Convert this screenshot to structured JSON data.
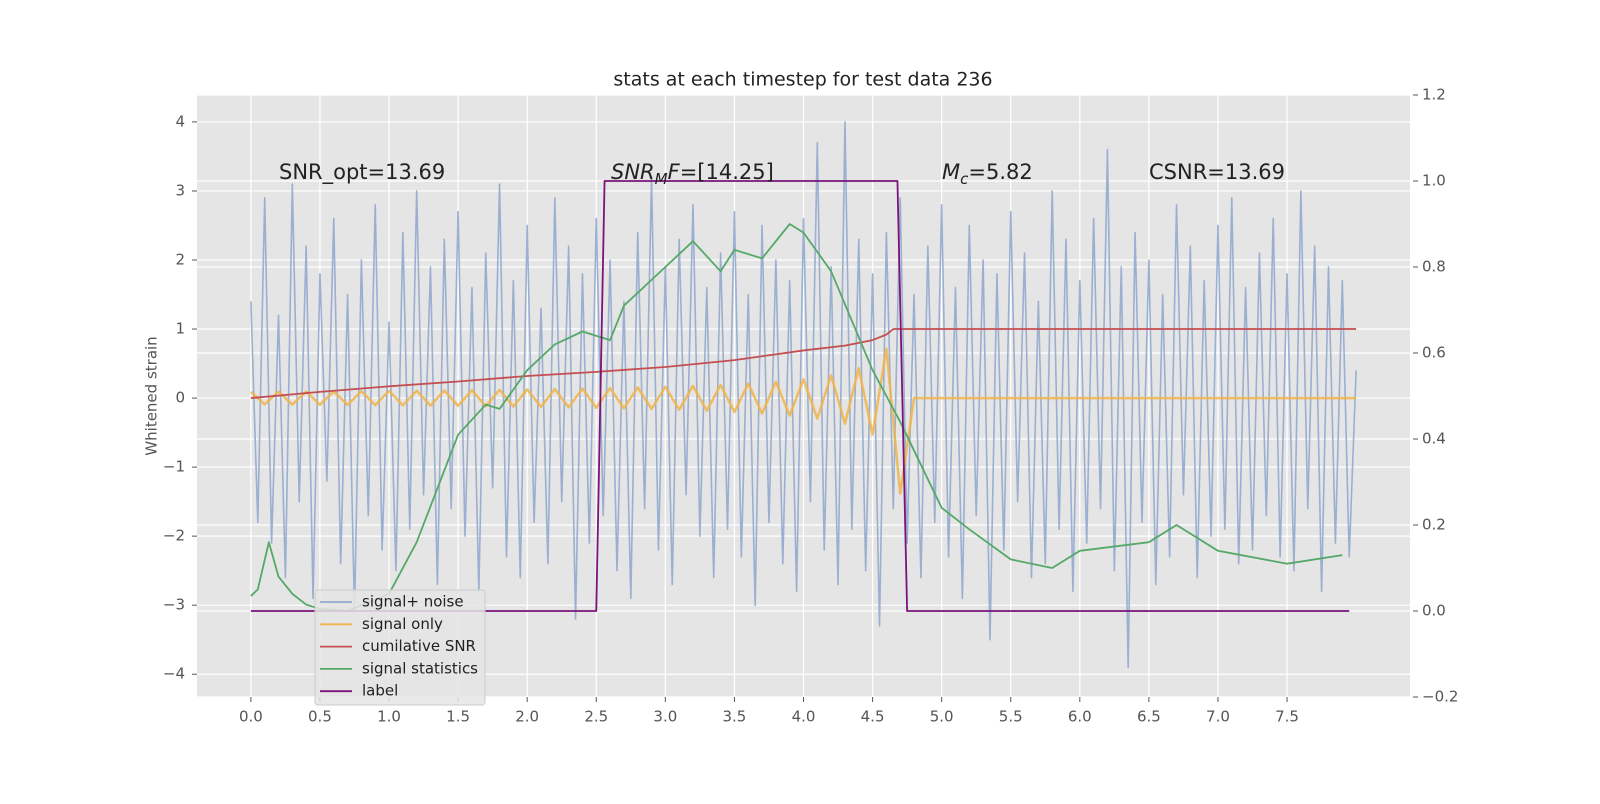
{
  "chart_data": {
    "type": "line",
    "title": "stats at each timestep for test data 236",
    "ylabel": "Whitened strain",
    "xlim": [
      -0.39,
      8.39
    ],
    "ylim": [
      -4.33,
      4.39
    ],
    "y2lim": [
      -0.2,
      1.2
    ],
    "xticks": [
      {
        "value": 0,
        "label": "0.0"
      },
      0.5,
      {
        "value": 1,
        "label": "1.0"
      },
      1.5,
      {
        "value": 2,
        "label": "2.0"
      },
      2.5,
      {
        "value": 3,
        "label": "3.0"
      },
      3.5,
      {
        "value": 4,
        "label": "4.0"
      },
      4.5,
      {
        "value": 5,
        "label": "5.0"
      },
      5.5,
      {
        "value": 6,
        "label": "6.0"
      },
      6.5,
      {
        "value": 7,
        "label": "7.0"
      },
      7.5
    ],
    "yticks": [
      {
        "value": -4,
        "label": "−4"
      },
      {
        "value": -3,
        "label": "−3"
      },
      {
        "value": -2,
        "label": "−2"
      },
      {
        "value": -1,
        "label": "−1"
      },
      0,
      1,
      2,
      3,
      4
    ],
    "y2ticks": [
      {
        "value": -0.2,
        "label": "−0.2"
      },
      {
        "value": 0,
        "label": "0.0"
      },
      0.2,
      0.4,
      0.6,
      0.8,
      {
        "value": 1,
        "label": "1.0"
      },
      1.2
    ],
    "grid": true,
    "annotations": [
      {
        "text": "SNR_opt=13.69"
      },
      {
        "math": "SNR",
        "sub": "M",
        "math_after": "F",
        "text": "=[14.25]"
      },
      {
        "math": "M",
        "sub": "c",
        "text": "=5.82"
      },
      {
        "text": "CSNR=13.69"
      }
    ],
    "series": [
      {
        "name": "signal+ noise",
        "color": "#92a8cd",
        "x": [
          0,
          0.05,
          0.1,
          0.15,
          0.2,
          0.25,
          0.3,
          0.35,
          0.4,
          0.45,
          0.5,
          0.55,
          0.6,
          0.65,
          0.7,
          0.75,
          0.8,
          0.85,
          0.9,
          0.95,
          1,
          1.05,
          1.1,
          1.15,
          1.2,
          1.25,
          1.3,
          1.35,
          1.4,
          1.45,
          1.5,
          1.55,
          1.6,
          1.65,
          1.7,
          1.75,
          1.8,
          1.85,
          1.9,
          1.95,
          2,
          2.05,
          2.1,
          2.15,
          2.2,
          2.25,
          2.3,
          2.35,
          2.4,
          2.45,
          2.5,
          2.55,
          2.6,
          2.65,
          2.7,
          2.75,
          2.8,
          2.85,
          2.9,
          2.95,
          3,
          3.05,
          3.1,
          3.15,
          3.2,
          3.25,
          3.3,
          3.35,
          3.4,
          3.45,
          3.5,
          3.55,
          3.6,
          3.65,
          3.7,
          3.75,
          3.8,
          3.85,
          3.9,
          3.95,
          4,
          4.05,
          4.1,
          4.15,
          4.2,
          4.25,
          4.3,
          4.35,
          4.4,
          4.45,
          4.5,
          4.55,
          4.6,
          4.65,
          4.7,
          4.75,
          4.8,
          4.85,
          4.9,
          4.95,
          5,
          5.05,
          5.1,
          5.15,
          5.2,
          5.25,
          5.3,
          5.35,
          5.4,
          5.45,
          5.5,
          5.55,
          5.6,
          5.65,
          5.7,
          5.75,
          5.8,
          5.85,
          5.9,
          5.95,
          6,
          6.05,
          6.1,
          6.15,
          6.2,
          6.25,
          6.3,
          6.35,
          6.4,
          6.45,
          6.5,
          6.55,
          6.6,
          6.65,
          6.7,
          6.75,
          6.8,
          6.85,
          6.9,
          6.95,
          7,
          7.05,
          7.1,
          7.15,
          7.2,
          7.25,
          7.3,
          7.35,
          7.4,
          7.45,
          7.5,
          7.55,
          7.6,
          7.65,
          7.7,
          7.75,
          7.8,
          7.85,
          7.9,
          7.95,
          8
        ],
        "values": [
          1.4,
          -1.8,
          2.9,
          -2.1,
          1.2,
          -2.6,
          3.1,
          -1.5,
          2.2,
          -2.9,
          1.8,
          -1.2,
          2.6,
          -2.4,
          1.5,
          -3.1,
          2.0,
          -1.7,
          2.8,
          -2.2,
          1.1,
          -2.5,
          2.4,
          -1.9,
          3.0,
          -1.4,
          1.9,
          -2.7,
          2.3,
          -1.6,
          2.7,
          -2.0,
          1.6,
          -2.8,
          2.1,
          -1.3,
          3.1,
          -2.3,
          1.7,
          -2.6,
          2.5,
          -1.8,
          1.3,
          -2.4,
          2.9,
          -1.5,
          2.2,
          -3.2,
          1.8,
          -2.1,
          2.6,
          -1.7,
          2.0,
          -2.5,
          1.4,
          -2.9,
          2.4,
          -1.6,
          3.2,
          -2.2,
          1.9,
          -2.7,
          2.3,
          -1.4,
          2.8,
          -2.0,
          1.6,
          -2.6,
          2.1,
          -1.9,
          2.7,
          -2.3,
          1.5,
          -3.0,
          2.5,
          -1.8,
          2.0,
          -2.4,
          1.7,
          -2.8,
          2.6,
          -1.5,
          3.7,
          -2.2,
          1.9,
          -2.7,
          4.0,
          -1.9,
          2.3,
          -2.5,
          1.8,
          -3.3,
          2.4,
          -1.6,
          2.9,
          -2.1,
          1.5,
          -2.6,
          2.2,
          -1.8,
          2.8,
          -2.3,
          1.6,
          -2.9,
          2.5,
          -1.7,
          2.0,
          -3.5,
          1.8,
          -2.2,
          2.7,
          -1.5,
          2.1,
          -2.6,
          1.4,
          -2.4,
          3.0,
          -1.9,
          2.3,
          -2.8,
          1.7,
          -2.1,
          2.6,
          -1.6,
          3.6,
          -2.5,
          1.9,
          -3.9,
          2.4,
          -1.8,
          2.0,
          -2.7,
          1.5,
          -2.3,
          2.8,
          -1.4,
          2.2,
          -2.6,
          1.7,
          -2.0,
          2.5,
          -1.9,
          2.9,
          -2.4,
          1.6,
          -2.2,
          2.1,
          -1.7,
          2.6,
          -2.3,
          1.8,
          -2.5,
          3.0,
          -1.6,
          2.2,
          -2.8,
          1.9,
          -2.1,
          1.7,
          -2.3,
          0.4
        ]
      },
      {
        "name": "signal only",
        "color": "#f0b44a",
        "x": [
          0,
          0.1,
          0.2,
          0.3,
          0.4,
          0.5,
          0.6,
          0.7,
          0.8,
          0.9,
          1,
          1.1,
          1.2,
          1.3,
          1.4,
          1.5,
          1.6,
          1.7,
          1.8,
          1.9,
          2,
          2.1,
          2.2,
          2.3,
          2.4,
          2.5,
          2.6,
          2.7,
          2.8,
          2.9,
          3,
          3.1,
          3.2,
          3.3,
          3.4,
          3.5,
          3.6,
          3.7,
          3.8,
          3.9,
          4,
          4.1,
          4.2,
          4.3,
          4.4,
          4.5,
          4.6,
          4.7,
          4.8,
          4.9,
          5,
          5.1,
          5.2,
          5.3,
          5.4,
          5.5,
          5.6,
          5.7,
          5.8,
          5.9,
          6,
          6.1,
          6.2,
          6.3,
          6.4,
          6.5,
          6.6,
          6.7,
          6.8,
          6.9,
          7,
          7.1,
          7.2,
          7.3,
          7.4,
          7.5,
          7.6,
          7.7,
          7.8,
          7.9,
          8
        ],
        "values": [
          0.09,
          -0.091,
          0.092,
          -0.094,
          0.095,
          -0.096,
          0.098,
          -0.099,
          0.101,
          -0.102,
          0.104,
          -0.105,
          0.107,
          -0.109,
          0.111,
          -0.113,
          0.115,
          -0.117,
          0.12,
          -0.122,
          0.125,
          -0.128,
          0.131,
          -0.134,
          0.137,
          -0.141,
          0.145,
          -0.149,
          0.154,
          -0.158,
          0.164,
          -0.17,
          0.176,
          -0.183,
          0.191,
          -0.201,
          0.211,
          -0.223,
          0.236,
          -0.253,
          0.272,
          -0.297,
          0.328,
          -0.37,
          0.431,
          -0.527,
          0.714,
          -1.383,
          0,
          0,
          0,
          0,
          0,
          0,
          0,
          0,
          0,
          0,
          0,
          0,
          0,
          0,
          0,
          0,
          0,
          0,
          0,
          0,
          0,
          0,
          0,
          0,
          0,
          0,
          0,
          0,
          0,
          0,
          0,
          0,
          0
        ]
      },
      {
        "name": "cumilative SNR",
        "color": "#c44e52",
        "x": [
          0,
          0.5,
          1,
          1.5,
          2,
          2.5,
          3,
          3.5,
          4,
          4.3,
          4.5,
          4.6,
          4.65,
          4.7,
          8
        ],
        "values": [
          0,
          0.09,
          0.17,
          0.24,
          0.32,
          0.38,
          0.45,
          0.55,
          0.69,
          0.76,
          0.84,
          0.92,
          1.0,
          1.0,
          1.0
        ]
      },
      {
        "name": "signal statistics",
        "color": "#55a868",
        "axis": "y2",
        "x": [
          0,
          0.05,
          0.13,
          0.2,
          0.3,
          0.4,
          0.5,
          0.7,
          1.0,
          1.2,
          1.5,
          1.7,
          1.8,
          2.0,
          2.2,
          2.4,
          2.6,
          2.7,
          2.9,
          3.0,
          3.2,
          3.4,
          3.5,
          3.7,
          3.9,
          4.0,
          4.2,
          4.5,
          4.7,
          5.0,
          5.2,
          5.5,
          5.8,
          6.0,
          6.5,
          6.7,
          7.0,
          7.5,
          7.9
        ],
        "values": [
          0.035,
          0.05,
          0.16,
          0.08,
          0.04,
          0.015,
          0.005,
          0.0,
          0.04,
          0.16,
          0.41,
          0.48,
          0.47,
          0.56,
          0.62,
          0.65,
          0.63,
          0.71,
          0.77,
          0.8,
          0.86,
          0.79,
          0.84,
          0.82,
          0.9,
          0.88,
          0.79,
          0.56,
          0.44,
          0.24,
          0.19,
          0.12,
          0.1,
          0.14,
          0.16,
          0.2,
          0.14,
          0.11,
          0.13
        ]
      },
      {
        "name": "label",
        "color": "#7b137b",
        "axis": "y2",
        "x": [
          0,
          2.5,
          2.56,
          4.68,
          4.75,
          7.95
        ],
        "values": [
          0,
          0,
          1,
          1,
          0,
          0
        ]
      }
    ]
  }
}
